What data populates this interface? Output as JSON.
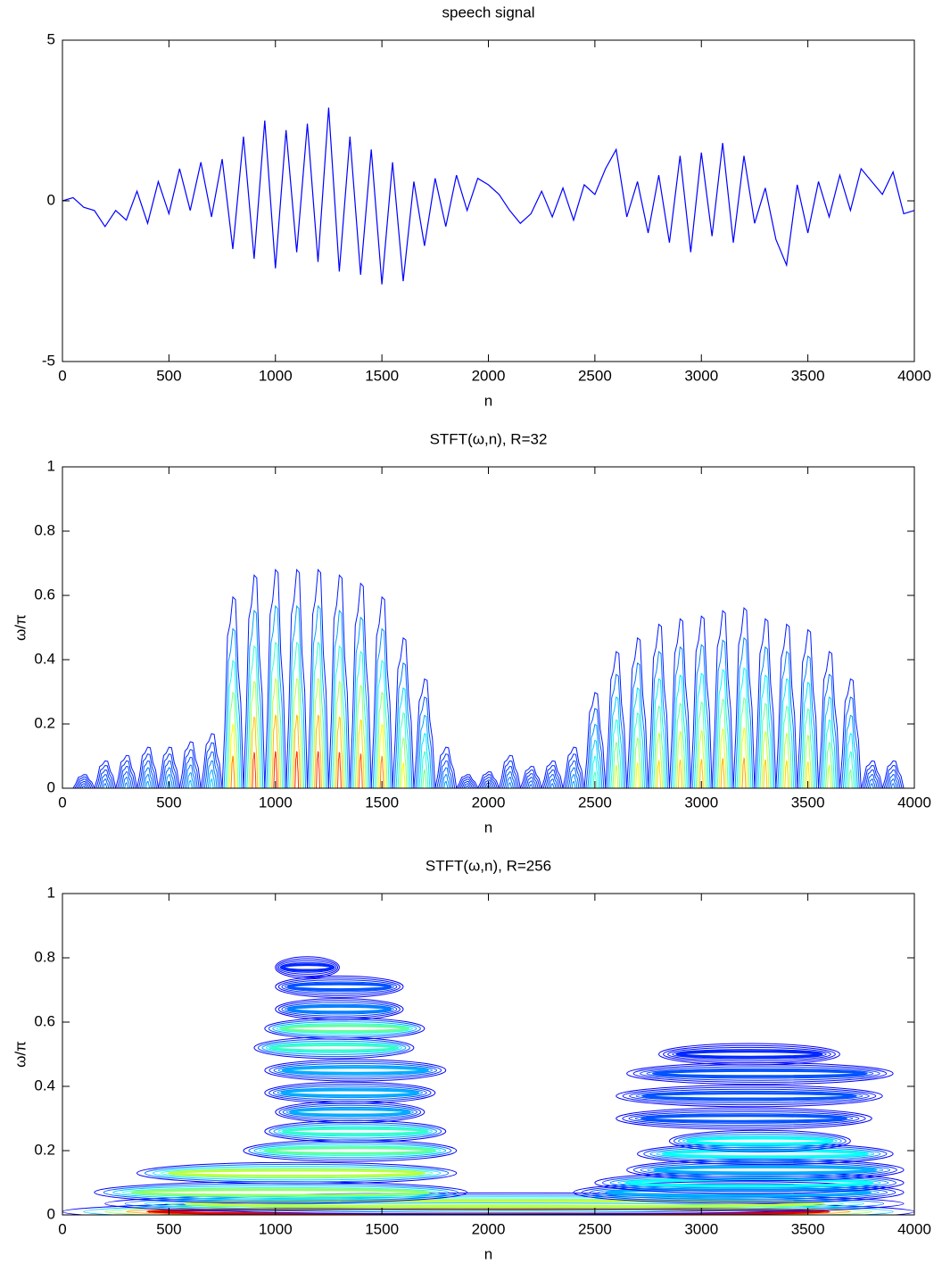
{
  "chart_data": [
    {
      "type": "line",
      "title": "speech signal",
      "xlabel": "n",
      "color": "#0000ff",
      "x": [
        0,
        50,
        100,
        150,
        200,
        250,
        300,
        350,
        400,
        450,
        500,
        550,
        600,
        650,
        700,
        750,
        800,
        850,
        900,
        950,
        1000,
        1050,
        1100,
        1150,
        1200,
        1250,
        1300,
        1350,
        1400,
        1450,
        1500,
        1550,
        1600,
        1650,
        1700,
        1750,
        1800,
        1850,
        1900,
        1950,
        2000,
        2050,
        2100,
        2150,
        2200,
        2250,
        2300,
        2350,
        2400,
        2450,
        2500,
        2550,
        2600,
        2650,
        2700,
        2750,
        2800,
        2850,
        2900,
        2950,
        3000,
        3050,
        3100,
        3150,
        3200,
        3250,
        3300,
        3350,
        3400,
        3450,
        3500,
        3550,
        3600,
        3650,
        3700,
        3750,
        3800,
        3850,
        3900,
        3950,
        4000
      ],
      "values": [
        0,
        0.1,
        -0.2,
        -0.3,
        -0.8,
        -0.3,
        -0.6,
        0.3,
        -0.7,
        0.6,
        -0.4,
        1.0,
        -0.3,
        1.2,
        -0.5,
        1.3,
        -1.5,
        2.0,
        -1.8,
        2.5,
        -2.1,
        2.2,
        -1.6,
        2.4,
        -1.9,
        2.9,
        -2.2,
        2.0,
        -2.3,
        1.6,
        -2.6,
        1.2,
        -2.5,
        0.6,
        -1.4,
        0.7,
        -0.8,
        0.8,
        -0.3,
        0.7,
        0.5,
        0.2,
        -0.3,
        -0.7,
        -0.4,
        0.3,
        -0.5,
        0.4,
        -0.6,
        0.5,
        0.2,
        1.0,
        1.6,
        -0.5,
        0.6,
        -1.0,
        0.8,
        -1.3,
        1.4,
        -1.6,
        1.5,
        -1.1,
        1.8,
        -1.3,
        1.4,
        -0.7,
        0.4,
        -1.2,
        -2.0,
        0.5,
        -1.0,
        0.6,
        -0.5,
        0.8,
        -0.3,
        1.0,
        0.6,
        0.2,
        0.9,
        -0.4,
        -0.3
      ],
      "xlim": [
        0,
        4000
      ],
      "xticks": [
        0,
        500,
        1000,
        1500,
        2000,
        2500,
        3000,
        3500,
        4000
      ],
      "ylim": [
        -5,
        5
      ],
      "yticks": [
        -5,
        0,
        5
      ]
    },
    {
      "type": "contour",
      "title": "STFT(ω,n), R=32",
      "xlabel": "n",
      "ylabel": "ω/π",
      "x": [
        100,
        200,
        300,
        400,
        500,
        600,
        700,
        800,
        900,
        1000,
        1100,
        1200,
        1300,
        1400,
        1500,
        1600,
        1700,
        1800,
        1900,
        2000,
        2100,
        2200,
        2300,
        2400,
        2500,
        2600,
        2700,
        2800,
        2900,
        3000,
        3100,
        3200,
        3300,
        3400,
        3500,
        3600,
        3700,
        3800,
        3900
      ],
      "values": [
        0.05,
        0.1,
        0.12,
        0.15,
        0.15,
        0.17,
        0.2,
        0.7,
        0.78,
        0.8,
        0.8,
        0.8,
        0.78,
        0.75,
        0.7,
        0.55,
        0.4,
        0.15,
        0.05,
        0.06,
        0.12,
        0.08,
        0.1,
        0.15,
        0.35,
        0.5,
        0.55,
        0.6,
        0.62,
        0.63,
        0.65,
        0.66,
        0.62,
        0.6,
        0.58,
        0.5,
        0.4,
        0.1,
        0.1
      ],
      "xlim": [
        0,
        4000
      ],
      "xticks": [
        0,
        500,
        1000,
        1500,
        2000,
        2500,
        3000,
        3500,
        4000
      ],
      "ylim": [
        0,
        1
      ],
      "yticks": [
        0,
        0.2,
        0.4,
        0.6,
        0.8,
        1
      ]
    },
    {
      "type": "ridges",
      "title": "STFT(ω,n), R=256",
      "xlabel": "n",
      "ylabel": "ω/π",
      "y": [
        0.01,
        0.035,
        0.07,
        0.13,
        0.2,
        0.26,
        0.32,
        0.38,
        0.45,
        0.52,
        0.58,
        0.64,
        0.71,
        0.77,
        0.07,
        0.1,
        0.14,
        0.19,
        0.23,
        0.3,
        0.37,
        0.44,
        0.5
      ],
      "xstart": [
        0,
        200,
        150,
        350,
        850,
        950,
        1000,
        950,
        950,
        900,
        950,
        1000,
        1000,
        1000,
        2400,
        2500,
        2650,
        2700,
        2850,
        2600,
        2600,
        2650,
        2800
      ],
      "xend": [
        4000,
        3950,
        1900,
        1850,
        1850,
        1800,
        1700,
        1750,
        1800,
        1650,
        1700,
        1600,
        1600,
        1300,
        3950,
        3950,
        3950,
        3900,
        3700,
        3800,
        3850,
        3900,
        3650
      ],
      "values": [
        0.9,
        0.5,
        0.45,
        0.5,
        0.4,
        0.35,
        0.2,
        0.2,
        0.2,
        0.35,
        0.4,
        0.15,
        0.1,
        0.05,
        0.2,
        0.3,
        0.2,
        0.3,
        0.3,
        0.1,
        0.1,
        0.1,
        0.05
      ],
      "xlim": [
        0,
        4000
      ],
      "xticks": [
        0,
        500,
        1000,
        1500,
        2000,
        2500,
        3000,
        3500,
        4000
      ],
      "ylim": [
        0,
        1
      ],
      "yticks": [
        0,
        0.2,
        0.4,
        0.6,
        0.8,
        1
      ]
    }
  ]
}
